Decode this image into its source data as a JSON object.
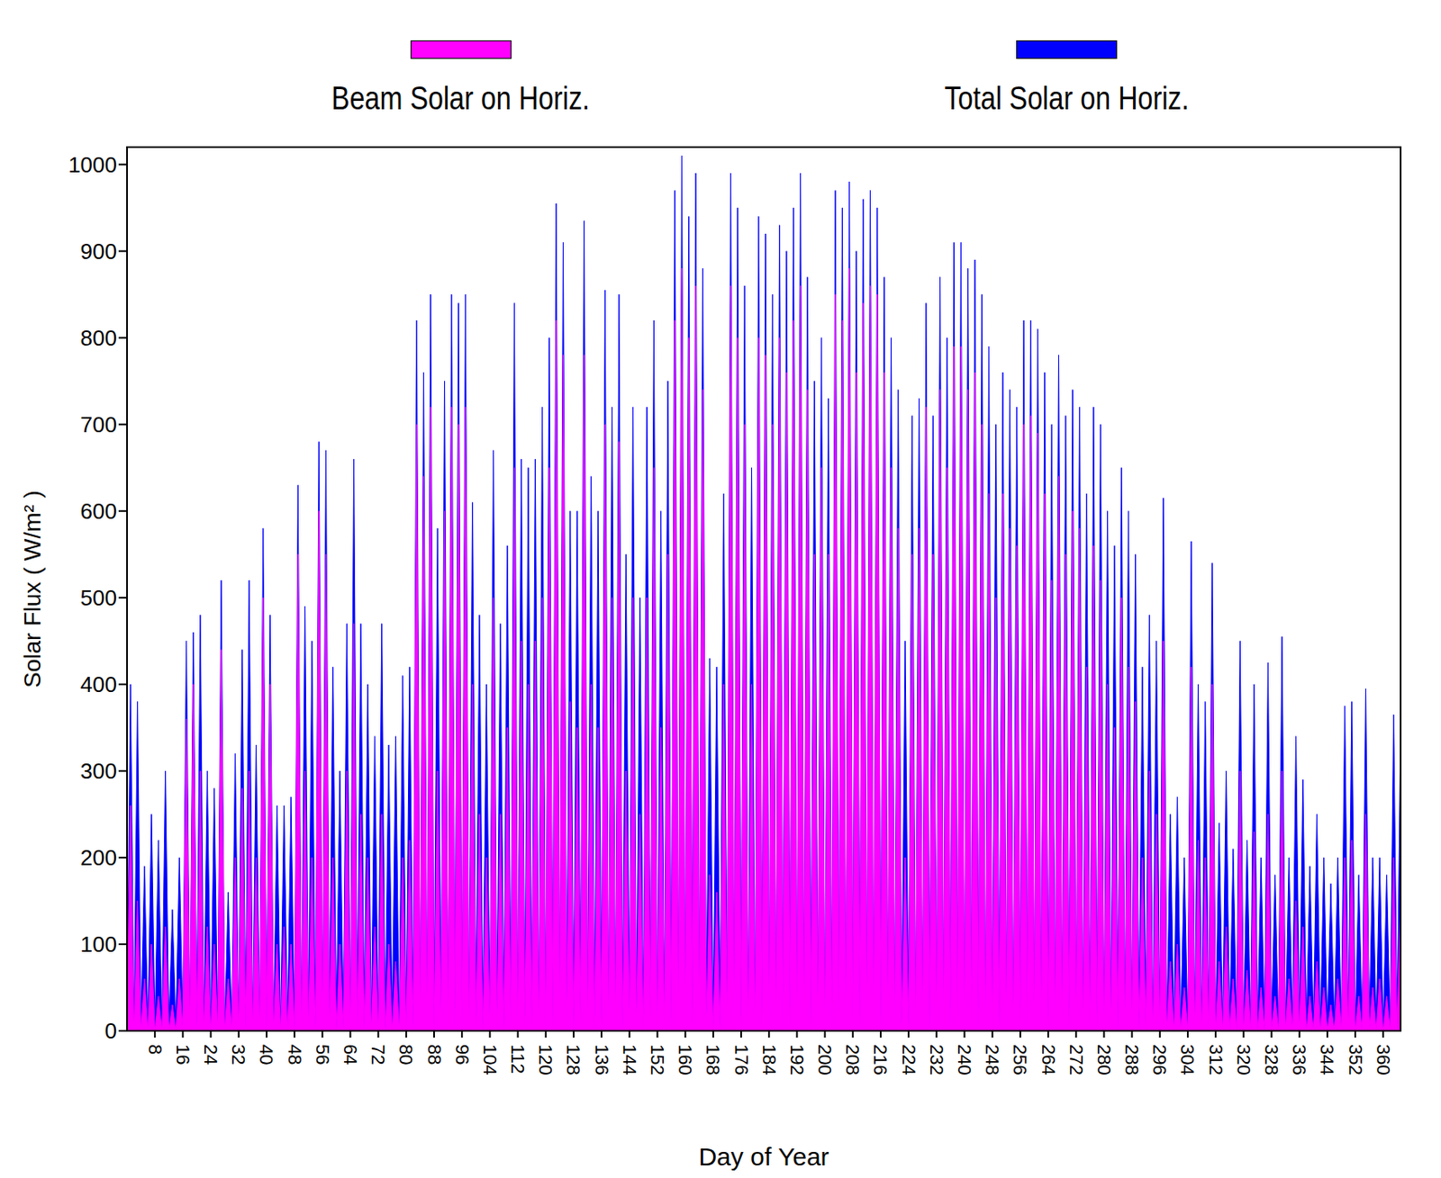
{
  "chart_data": {
    "type": "area",
    "x_label": "Day of Year",
    "y_label": "Solar Flux ( W/m² )",
    "legend": "top",
    "grid": false,
    "xlim": [
      0,
      365
    ],
    "ylim": [
      0,
      1020
    ],
    "xticks": [
      8,
      16,
      24,
      32,
      40,
      48,
      56,
      64,
      72,
      80,
      88,
      96,
      104,
      112,
      120,
      128,
      136,
      144,
      152,
      160,
      168,
      176,
      184,
      192,
      200,
      208,
      216,
      224,
      232,
      240,
      248,
      256,
      264,
      272,
      280,
      288,
      296,
      304,
      312,
      320,
      328,
      336,
      344,
      352,
      360
    ],
    "yticks": [
      0,
      100,
      200,
      300,
      400,
      500,
      600,
      700,
      800,
      900,
      1000
    ],
    "x": [
      0,
      1,
      2,
      3,
      4,
      5,
      6,
      7,
      8,
      9,
      10,
      11,
      12,
      13,
      14,
      15,
      16,
      17,
      18,
      19,
      20,
      21,
      22,
      23,
      24,
      25,
      26,
      27,
      28,
      29,
      30,
      31,
      32,
      33,
      34,
      35,
      36,
      37,
      38,
      39,
      40,
      41,
      42,
      43,
      44,
      45,
      46,
      47,
      48,
      49,
      50,
      51,
      52,
      53,
      54,
      55,
      56,
      57,
      58,
      59,
      60,
      61,
      62,
      63,
      64,
      65,
      66,
      67,
      68,
      69,
      70,
      71,
      72,
      73,
      74,
      75,
      76,
      77,
      78,
      79,
      80,
      81,
      82,
      83,
      84,
      85,
      86,
      87,
      88,
      89,
      90,
      91,
      92,
      93,
      94,
      95,
      96,
      97,
      98,
      99,
      100,
      101,
      102,
      103,
      104,
      105,
      106,
      107,
      108,
      109,
      110,
      111,
      112,
      113,
      114,
      115,
      116,
      117,
      118,
      119,
      120,
      121,
      122,
      123,
      124,
      125,
      126,
      127,
      128,
      129,
      130,
      131,
      132,
      133,
      134,
      135,
      136,
      137,
      138,
      139,
      140,
      141,
      142,
      143,
      144,
      145,
      146,
      147,
      148,
      149,
      150,
      151,
      152,
      153,
      154,
      155,
      156,
      157,
      158,
      159,
      160,
      161,
      162,
      163,
      164,
      165,
      166,
      167,
      168,
      169,
      170,
      171,
      172,
      173,
      174,
      175,
      176,
      177,
      178,
      179,
      180,
      181,
      182,
      183,
      184,
      185,
      186,
      187,
      188,
      189,
      190,
      191,
      192,
      193,
      194,
      195,
      196,
      197,
      198,
      199,
      200,
      201,
      202,
      203,
      204,
      205,
      206,
      207,
      208,
      209,
      210,
      211,
      212,
      213,
      214,
      215,
      216,
      217,
      218,
      219,
      220,
      221,
      222,
      223,
      224,
      225,
      226,
      227,
      228,
      229,
      230,
      231,
      232,
      233,
      234,
      235,
      236,
      237,
      238,
      239,
      240,
      241,
      242,
      243,
      244,
      245,
      246,
      247,
      248,
      249,
      250,
      251,
      252,
      253,
      254,
      255,
      256,
      257,
      258,
      259,
      260,
      261,
      262,
      263,
      264,
      265,
      266,
      267,
      268,
      269,
      270,
      271,
      272,
      273,
      274,
      275,
      276,
      277,
      278,
      279,
      280,
      281,
      282,
      283,
      284,
      285,
      286,
      287,
      288,
      289,
      290,
      291,
      292,
      293,
      294,
      295,
      296,
      297,
      298,
      299,
      300,
      301,
      302,
      303,
      304,
      305,
      306,
      307,
      308,
      309,
      310,
      311,
      312,
      313,
      314,
      315,
      316,
      317,
      318,
      319,
      320,
      321,
      322,
      323,
      324,
      325,
      326,
      327,
      328,
      329,
      330,
      331,
      332,
      333,
      334,
      335,
      336,
      337,
      338,
      339,
      340,
      341,
      342,
      343,
      344,
      345,
      346,
      347,
      348,
      349,
      350,
      351,
      352,
      353,
      354,
      355,
      356,
      357,
      358,
      359,
      360,
      361,
      362,
      363,
      364,
      365
    ],
    "series": [
      {
        "name": "Beam Solar on Horiz.",
        "color": "#ff00ff",
        "values": [
          0,
          260,
          0,
          150,
          0,
          60,
          0,
          100,
          0,
          40,
          0,
          120,
          0,
          30,
          0,
          60,
          0,
          360,
          0,
          400,
          0,
          300,
          0,
          120,
          0,
          100,
          0,
          440,
          0,
          60,
          0,
          200,
          0,
          280,
          0,
          300,
          0,
          200,
          0,
          500,
          0,
          400,
          0,
          100,
          0,
          120,
          0,
          100,
          0,
          550,
          0,
          300,
          0,
          200,
          0,
          600,
          0,
          550,
          0,
          200,
          0,
          100,
          0,
          300,
          0,
          470,
          0,
          250,
          0,
          200,
          0,
          120,
          0,
          250,
          0,
          100,
          0,
          80,
          0,
          200,
          0,
          220,
          0,
          700,
          0,
          640,
          0,
          720,
          0,
          300,
          0,
          600,
          0,
          720,
          0,
          700,
          0,
          720,
          0,
          400,
          0,
          250,
          0,
          200,
          0,
          500,
          0,
          250,
          0,
          350,
          0,
          650,
          0,
          450,
          0,
          400,
          0,
          450,
          0,
          500,
          0,
          650,
          0,
          820,
          0,
          780,
          0,
          380,
          0,
          350,
          0,
          780,
          0,
          400,
          0,
          350,
          0,
          700,
          0,
          500,
          0,
          680,
          0,
          300,
          0,
          500,
          0,
          250,
          0,
          500,
          0,
          650,
          0,
          350,
          0,
          550,
          0,
          820,
          0,
          880,
          0,
          800,
          0,
          860,
          0,
          740,
          0,
          180,
          0,
          160,
          0,
          400,
          0,
          860,
          0,
          800,
          0,
          700,
          0,
          400,
          0,
          800,
          0,
          780,
          0,
          700,
          0,
          800,
          0,
          760,
          0,
          820,
          0,
          860,
          0,
          740,
          0,
          550,
          0,
          650,
          0,
          550,
          0,
          850,
          0,
          820,
          0,
          880,
          0,
          760,
          0,
          840,
          0,
          860,
          0,
          850,
          0,
          760,
          0,
          650,
          0,
          580,
          0,
          200,
          0,
          550,
          0,
          580,
          0,
          720,
          0,
          550,
          0,
          740,
          0,
          650,
          0,
          790,
          0,
          790,
          0,
          740,
          0,
          760,
          0,
          700,
          0,
          620,
          0,
          500,
          0,
          620,
          0,
          580,
          0,
          560,
          0,
          700,
          0,
          710,
          0,
          690,
          0,
          620,
          0,
          520,
          0,
          640,
          0,
          550,
          0,
          600,
          0,
          580,
          0,
          420,
          0,
          560,
          0,
          520,
          0,
          400,
          0,
          350,
          0,
          500,
          0,
          420,
          0,
          380,
          0,
          200,
          0,
          300,
          0,
          250,
          0,
          450,
          0,
          80,
          0,
          100,
          0,
          50,
          0,
          420,
          0,
          220,
          0,
          200,
          0,
          400,
          0,
          80,
          0,
          120,
          0,
          60,
          0,
          300,
          0,
          70,
          0,
          230,
          0,
          50,
          0,
          250,
          0,
          40,
          0,
          300,
          0,
          60,
          0,
          150,
          0,
          120,
          0,
          40,
          0,
          80,
          0,
          50,
          0,
          30,
          0,
          60,
          0,
          200,
          0,
          220,
          0,
          40,
          0,
          250,
          0,
          50,
          0,
          60,
          0,
          40,
          0,
          200,
          0,
          150
        ]
      },
      {
        "name": "Total Solar on Horiz.",
        "color": "#0000ff",
        "values": [
          0,
          400,
          0,
          380,
          0,
          190,
          0,
          250,
          0,
          220,
          0,
          300,
          0,
          140,
          0,
          200,
          0,
          450,
          0,
          460,
          0,
          480,
          0,
          300,
          0,
          280,
          0,
          520,
          0,
          160,
          0,
          320,
          0,
          440,
          0,
          520,
          0,
          330,
          0,
          580,
          0,
          480,
          0,
          260,
          0,
          260,
          0,
          270,
          0,
          630,
          0,
          490,
          0,
          450,
          0,
          680,
          0,
          670,
          0,
          420,
          0,
          300,
          0,
          470,
          0,
          660,
          0,
          470,
          0,
          400,
          0,
          340,
          0,
          470,
          0,
          330,
          0,
          340,
          0,
          410,
          0,
          420,
          0,
          820,
          0,
          760,
          0,
          850,
          0,
          580,
          0,
          750,
          0,
          850,
          0,
          840,
          0,
          850,
          0,
          610,
          0,
          480,
          0,
          400,
          0,
          670,
          0,
          470,
          0,
          560,
          0,
          840,
          0,
          660,
          0,
          650,
          0,
          660,
          0,
          720,
          0,
          800,
          0,
          955,
          0,
          910,
          0,
          600,
          0,
          600,
          0,
          935,
          0,
          640,
          0,
          600,
          0,
          855,
          0,
          720,
          0,
          850,
          0,
          550,
          0,
          720,
          0,
          500,
          0,
          720,
          0,
          820,
          0,
          600,
          0,
          750,
          0,
          970,
          0,
          1010,
          0,
          940,
          0,
          990,
          0,
          880,
          0,
          430,
          0,
          420,
          0,
          620,
          0,
          990,
          0,
          950,
          0,
          860,
          0,
          650,
          0,
          940,
          0,
          920,
          0,
          850,
          0,
          930,
          0,
          900,
          0,
          950,
          0,
          990,
          0,
          870,
          0,
          750,
          0,
          800,
          0,
          730,
          0,
          970,
          0,
          950,
          0,
          980,
          0,
          900,
          0,
          960,
          0,
          970,
          0,
          950,
          0,
          870,
          0,
          800,
          0,
          740,
          0,
          450,
          0,
          710,
          0,
          730,
          0,
          840,
          0,
          710,
          0,
          870,
          0,
          800,
          0,
          910,
          0,
          910,
          0,
          880,
          0,
          890,
          0,
          850,
          0,
          790,
          0,
          700,
          0,
          760,
          0,
          740,
          0,
          720,
          0,
          820,
          0,
          820,
          0,
          810,
          0,
          760,
          0,
          700,
          0,
          780,
          0,
          710,
          0,
          740,
          0,
          720,
          0,
          620,
          0,
          720,
          0,
          700,
          0,
          600,
          0,
          560,
          0,
          650,
          0,
          600,
          0,
          550,
          0,
          420,
          0,
          480,
          0,
          450,
          0,
          615,
          0,
          250,
          0,
          270,
          0,
          200,
          0,
          565,
          0,
          400,
          0,
          380,
          0,
          540,
          0,
          240,
          0,
          300,
          0,
          210,
          0,
          450,
          0,
          220,
          0,
          400,
          0,
          200,
          0,
          425,
          0,
          180,
          0,
          455,
          0,
          200,
          0,
          340,
          0,
          290,
          0,
          190,
          0,
          250,
          0,
          200,
          0,
          170,
          0,
          200,
          0,
          375,
          0,
          380,
          0,
          180,
          0,
          395,
          0,
          200,
          0,
          200,
          0,
          180,
          0,
          365,
          0,
          350
        ]
      }
    ]
  }
}
